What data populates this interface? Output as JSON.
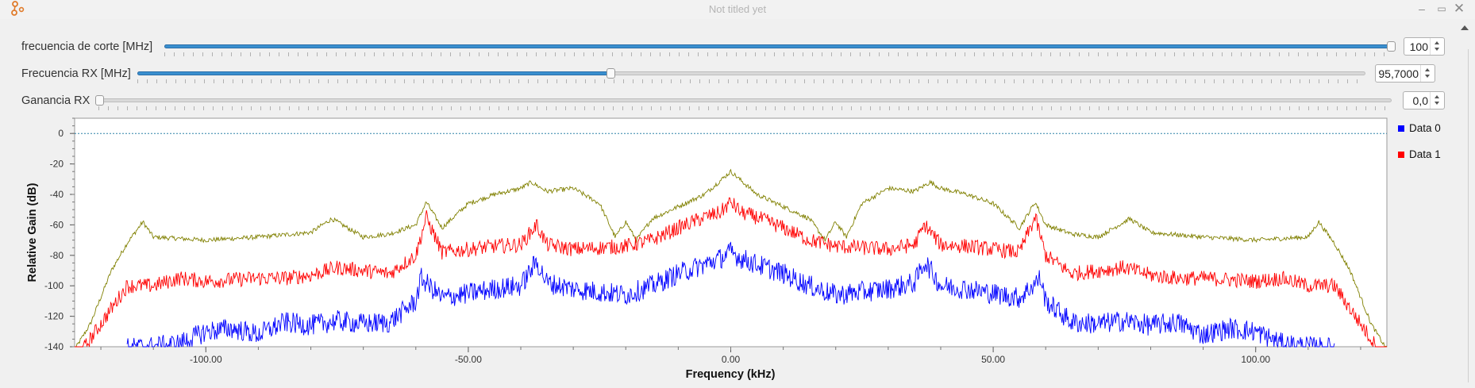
{
  "window": {
    "title": "Not titled yet",
    "buttons": {
      "minimize": "–",
      "maximize": "▭",
      "close": "✕"
    }
  },
  "controls": [
    {
      "label": "frecuencia de corte [MHz]",
      "value": "100",
      "level": 1.0
    },
    {
      "label": "Frecuencia RX [MHz]",
      "value": "95,7000",
      "level": 0.385
    },
    {
      "label": "Ganancia RX",
      "value": "0,0",
      "level": 0.0
    }
  ],
  "colors": {
    "accent": "#3a8fcf",
    "data0": "#0000ff",
    "data1": "#ff0000",
    "trace3": "#808000",
    "ref": "#2f82a8"
  },
  "chart_data": {
    "type": "line",
    "title": "",
    "xlabel": "Frequency (kHz)",
    "ylabel": "Relative Gain (dB)",
    "xlim": [
      -125,
      125
    ],
    "ylim": [
      -140,
      10
    ],
    "x_ticks": [
      -100,
      -50,
      0,
      50,
      100
    ],
    "x_tick_labels": [
      "-100.00",
      "-50.00",
      "0.00",
      "50.00",
      "100.00"
    ],
    "y_ticks": [
      0,
      -20,
      -40,
      -60,
      -80,
      -100,
      -120,
      -140
    ],
    "y_tick_labels": [
      "0",
      "-20",
      "-40",
      "-60",
      "-80",
      "-100",
      "-120",
      "-140"
    ],
    "legend_position": "right",
    "reference_line_y": 0,
    "series": [
      {
        "name": "Data 0",
        "color": "#0000ff",
        "x": [
          -115,
          -110,
          -105,
          -100,
          -95,
          -90,
          -85,
          -80,
          -75,
          -70,
          -65,
          -60,
          -59,
          -55,
          -50,
          -45,
          -40,
          -37,
          -35,
          -30,
          -25,
          -20,
          -15,
          -10,
          -5,
          -2,
          0,
          2,
          5,
          10,
          15,
          20,
          25,
          30,
          35,
          37,
          40,
          45,
          50,
          55,
          59,
          60,
          65,
          70,
          75,
          80,
          85,
          90,
          95,
          100,
          105,
          110,
          115
        ],
        "y": [
          -141,
          -140,
          -138,
          -130,
          -128,
          -132,
          -124,
          -126,
          -123,
          -125,
          -124,
          -110,
          -95,
          -108,
          -105,
          -102,
          -100,
          -84,
          -98,
          -102,
          -104,
          -106,
          -100,
          -92,
          -86,
          -82,
          -78,
          -82,
          -86,
          -92,
          -100,
          -106,
          -104,
          -102,
          -98,
          -84,
          -100,
          -102,
          -105,
          -108,
          -95,
          -110,
          -124,
          -125,
          -123,
          -126,
          -124,
          -132,
          -128,
          -130,
          -138,
          -140,
          -141
        ]
      },
      {
        "name": "Data 1",
        "color": "#ff0000",
        "x": [
          -125,
          -120,
          -115,
          -110,
          -105,
          -100,
          -95,
          -90,
          -85,
          -80,
          -75,
          -70,
          -65,
          -60,
          -58,
          -55,
          -50,
          -45,
          -40,
          -37,
          -35,
          -30,
          -25,
          -20,
          -15,
          -10,
          -5,
          -2,
          0,
          2,
          5,
          10,
          15,
          20,
          25,
          30,
          35,
          37,
          40,
          45,
          50,
          55,
          58,
          60,
          65,
          70,
          75,
          80,
          85,
          90,
          95,
          100,
          105,
          110,
          115,
          120,
          125
        ],
        "y": [
          -150,
          -125,
          -100,
          -100,
          -95,
          -97,
          -96,
          -95,
          -95,
          -93,
          -88,
          -90,
          -92,
          -80,
          -55,
          -78,
          -76,
          -74,
          -73,
          -60,
          -73,
          -76,
          -75,
          -74,
          -70,
          -62,
          -55,
          -52,
          -45,
          -52,
          -55,
          -62,
          -70,
          -74,
          -75,
          -76,
          -73,
          -60,
          -73,
          -74,
          -76,
          -78,
          -55,
          -80,
          -92,
          -90,
          -88,
          -93,
          -95,
          -95,
          -96,
          -97,
          -95,
          -100,
          -100,
          -125,
          -150
        ]
      },
      {
        "name": "",
        "color": "#808000",
        "x": [
          -125,
          -122,
          -118,
          -115,
          -112,
          -110,
          -100,
          -90,
          -80,
          -76,
          -70,
          -65,
          -60,
          -58,
          -55,
          -50,
          -45,
          -40,
          -38,
          -35,
          -30,
          -25,
          -22,
          -20,
          -18,
          -15,
          -10,
          -5,
          0,
          5,
          10,
          15,
          18,
          20,
          22,
          25,
          30,
          35,
          38,
          40,
          45,
          50,
          55,
          58,
          60,
          65,
          70,
          76,
          80,
          90,
          100,
          110,
          112,
          115,
          118,
          122,
          125
        ],
        "y": [
          -142,
          -125,
          -90,
          -72,
          -58,
          -68,
          -70,
          -68,
          -65,
          -56,
          -68,
          -66,
          -60,
          -45,
          -62,
          -46,
          -40,
          -36,
          -32,
          -38,
          -36,
          -46,
          -68,
          -58,
          -70,
          -56,
          -48,
          -40,
          -25,
          -40,
          -48,
          -56,
          -70,
          -58,
          -68,
          -46,
          -36,
          -38,
          -32,
          -36,
          -40,
          -46,
          -62,
          -45,
          -60,
          -66,
          -68,
          -56,
          -65,
          -68,
          -70,
          -68,
          -58,
          -72,
          -90,
          -125,
          -142
        ]
      }
    ]
  }
}
